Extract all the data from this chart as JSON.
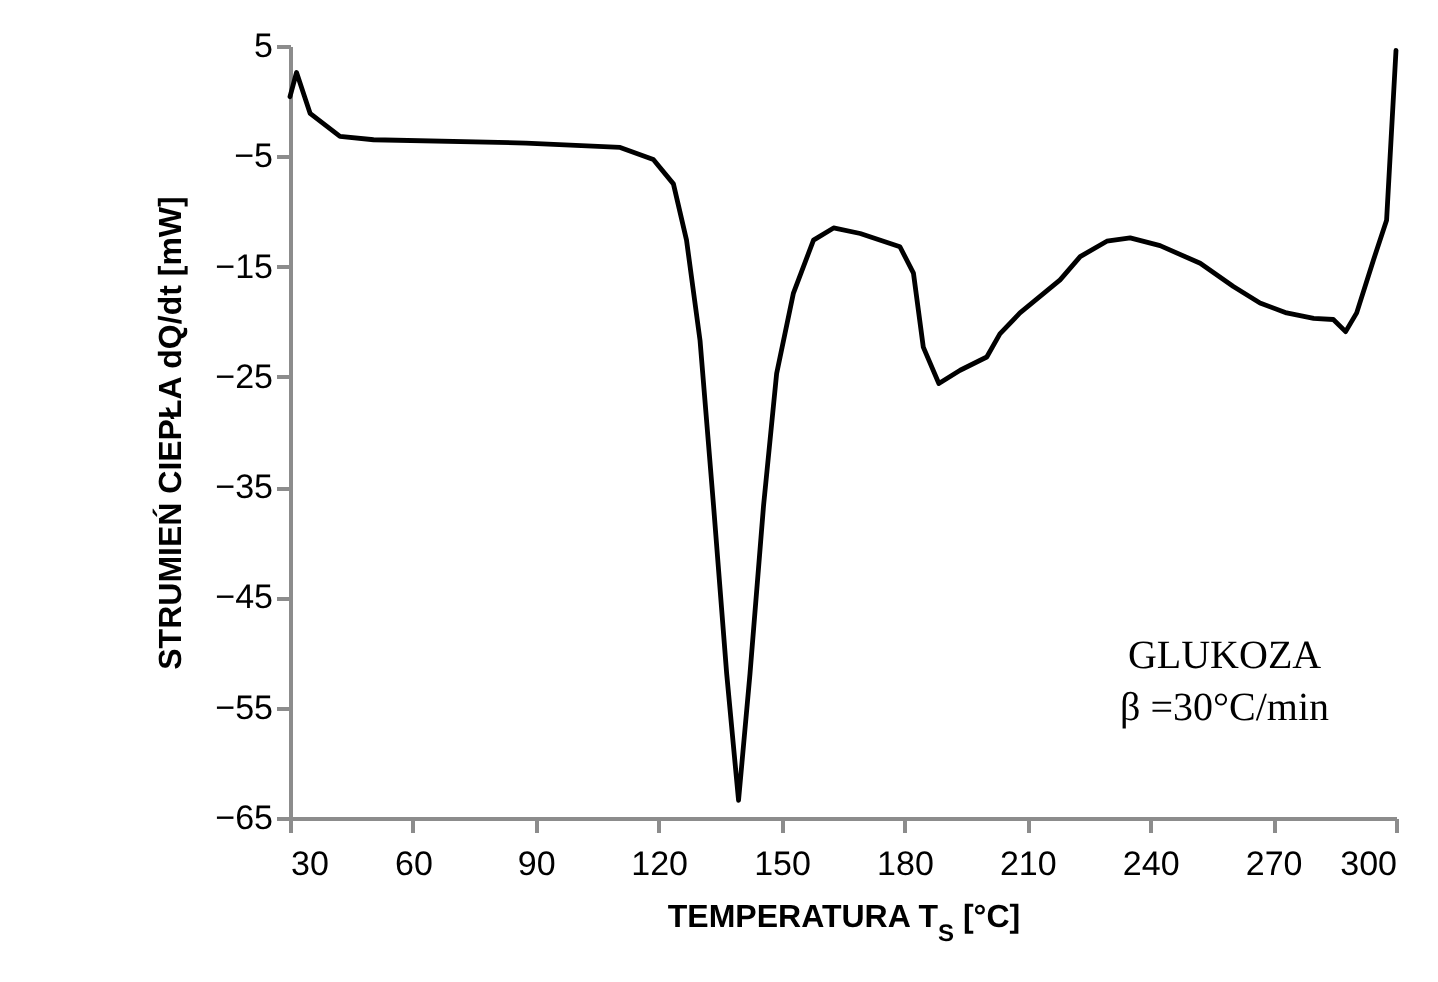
{
  "chart_data": {
    "type": "line",
    "xlabel": "TEMPERATURA T$_{S}$ [°C]",
    "ylabel": "STRUMIEŃ CIEPŁA dQ/dt [mW]",
    "annotations": [
      "GLUKOZA",
      "β =30°C/min"
    ],
    "xlim": [
      30,
      300
    ],
    "xticks": [
      30,
      60,
      90,
      120,
      150,
      180,
      210,
      240,
      270,
      300
    ],
    "ylim": [
      -65,
      5
    ],
    "yticks": [
      -65,
      -55,
      -45,
      -35,
      -25,
      -15,
      -5,
      5
    ],
    "grid": false,
    "legend": false,
    "marker": "none",
    "line_style": "solid",
    "series": [
      {
        "color": "#000000",
        "x": [
          30,
          31.6,
          34.9,
          42.2,
          50.4,
          87.6,
          110.6,
          118.7,
          123.6,
          126.8,
          130.1,
          133.4,
          136.6,
          139.5,
          142.3,
          145.6,
          148.8,
          152.9,
          157.8,
          162.7,
          169.2,
          178.9,
          182.2,
          184.6,
          188.4,
          193.6,
          200.1,
          203.3,
          208.2,
          213.1,
          218,
          222.9,
          229.4,
          235.1,
          242.4,
          252.2,
          260.3,
          266.8,
          273.3,
          279.9,
          284.7,
          287.7,
          290.4,
          294.5,
          297.7,
          300
        ],
        "values": [
          0.4,
          2.6,
          -1.1,
          -3.2,
          -3.5,
          -3.8,
          -4.2,
          -5.3,
          -7.5,
          -12.6,
          -21.7,
          -36.7,
          -51.9,
          -63.4,
          -51.9,
          -36.7,
          -24.7,
          -17.4,
          -12.6,
          -11.5,
          -12.0,
          -13.2,
          -15.6,
          -22.3,
          -25.6,
          -24.4,
          -23.2,
          -21.1,
          -19.2,
          -17.7,
          -16.2,
          -14.1,
          -12.7,
          -12.4,
          -13.1,
          -14.7,
          -16.8,
          -18.3,
          -19.2,
          -19.7,
          -19.8,
          -20.9,
          -19.2,
          -14.4,
          -10.8,
          4.6
        ]
      }
    ]
  }
}
